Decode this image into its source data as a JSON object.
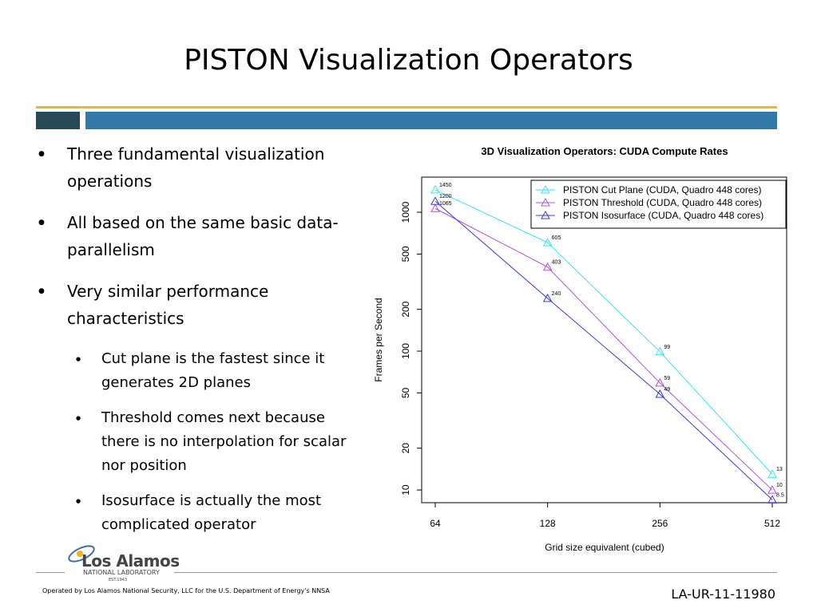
{
  "slide_title": "PISTON Visualization Operators",
  "bullets": [
    "Three fundamental visualization operations",
    "All based on the same basic data-parallelism",
    "Very similar performance characteristics"
  ],
  "sub_bullets": [
    "Cut plane is the fastest since it generates 2D planes",
    "Threshold comes next because there is no interpolation for scalar nor position",
    "Isosurface is actually the most complicated operator"
  ],
  "logo": {
    "name": "Los Alamos",
    "sub": "NATIONAL LABORATORY",
    "est": "EST.1943"
  },
  "footer": "Operated by Los Alamos National Security, LLC for the U.S. Department of Energy's NNSA",
  "doc_id": "LA-UR-11-11980",
  "chart_data": {
    "type": "line",
    "title": "3D Visualization Operators: CUDA Compute Rates",
    "xlabel": "Grid size equivalent (cubed)",
    "ylabel": "Frames per Second",
    "categories": [
      "64",
      "128",
      "256",
      "512"
    ],
    "series": [
      {
        "name": "PISTON Cut Plane (CUDA, Quadro 448 cores)",
        "color": "#33e6f0",
        "values": [
          1450,
          605,
          99,
          13
        ]
      },
      {
        "name": "PISTON Threshold (CUDA, Quadro 448 cores)",
        "color": "#b050e0",
        "values": [
          1065,
          403,
          59,
          10
        ]
      },
      {
        "name": "PISTON Isosurface (CUDA, Quadro 448 cores)",
        "color": "#3a3ae0",
        "values": [
          1200,
          240,
          49,
          8.5
        ]
      }
    ],
    "ylim": [
      8.1,
      1790
    ],
    "yticks": [
      10,
      20,
      50,
      100,
      200,
      500,
      1000
    ],
    "log_y": true,
    "legend": "top-right"
  }
}
